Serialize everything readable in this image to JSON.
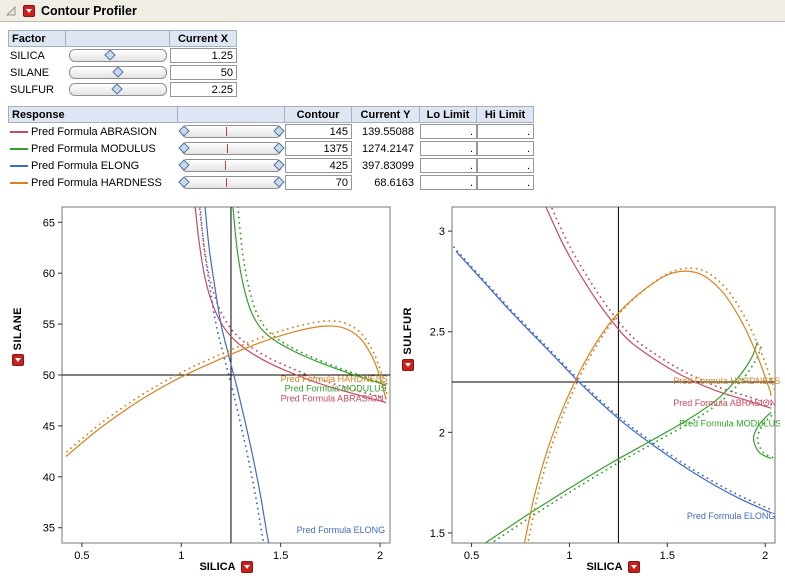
{
  "window": {
    "title": "Contour Profiler"
  },
  "colors": {
    "abrasion": "#c94a5e",
    "modulus": "#33a02c",
    "elong": "#4169c8",
    "hardness": "#d9821f",
    "menu_button": "#c8201c"
  },
  "factor_panel": {
    "headers": {
      "factor": "Factor",
      "current_x": "Current X"
    },
    "rows": [
      {
        "name": "SILICA",
        "value": "1.25",
        "slider_pos": 0.42
      },
      {
        "name": "SILANE",
        "value": "50",
        "slider_pos": 0.5
      },
      {
        "name": "SULFUR",
        "value": "2.25",
        "slider_pos": 0.49
      }
    ]
  },
  "response_panel": {
    "headers": {
      "response": "Response",
      "contour": "Contour",
      "current_y": "Current Y",
      "lo": "Lo Limit",
      "hi": "Hi Limit"
    },
    "rows": [
      {
        "name": "Pred Formula ABRASION",
        "color": "abrasion",
        "contour": "145",
        "current_y": "139.55088",
        "lo": ".",
        "hi": ".",
        "marker": 0.45,
        "lo_pos": 0.03,
        "hi_pos": 0.97
      },
      {
        "name": "Pred Formula MODULUS",
        "color": "modulus",
        "contour": "1375",
        "current_y": "1274.2147",
        "lo": ".",
        "hi": ".",
        "marker": 0.46,
        "lo_pos": 0.03,
        "hi_pos": 0.97
      },
      {
        "name": "Pred Formula ELONG",
        "color": "elong",
        "contour": "425",
        "current_y": "397.83099",
        "lo": ".",
        "hi": ".",
        "marker": 0.44,
        "lo_pos": 0.03,
        "hi_pos": 0.97
      },
      {
        "name": "Pred Formula HARDNESS",
        "color": "hardness",
        "contour": "70",
        "current_y": "68.6163",
        "lo": ".",
        "hi": ".",
        "marker": 0.45,
        "lo_pos": 0.03,
        "hi_pos": 0.97
      }
    ]
  },
  "chart_data": [
    {
      "type": "contour",
      "xlabel": "SILICA",
      "ylabel": "SILANE",
      "xlim": [
        0.4,
        2.05
      ],
      "ylim": [
        33.5,
        66.5
      ],
      "xticks": [
        0.5,
        1,
        1.5,
        2
      ],
      "yticks": [
        35,
        40,
        45,
        50,
        55,
        60,
        65
      ],
      "crosshair": {
        "x": 1.25,
        "y": 50
      },
      "curves": [
        {
          "name": "Pred Formula ABRASION",
          "color": "abrasion",
          "dot_offset": [
            4,
            -3
          ],
          "points": [
            [
              1.07,
              66.5
            ],
            [
              1.09,
              63
            ],
            [
              1.12,
              59.5
            ],
            [
              1.16,
              56.8
            ],
            [
              1.21,
              54.8
            ],
            [
              1.27,
              53.4
            ],
            [
              1.35,
              52.2
            ],
            [
              1.45,
              51.1
            ],
            [
              1.58,
              50.0
            ],
            [
              1.72,
              49.0
            ],
            [
              1.86,
              48.2
            ],
            [
              2.03,
              47.3
            ]
          ]
        },
        {
          "name": "Pred Formula MODULUS",
          "color": "modulus",
          "dot_offset": [
            5,
            0
          ],
          "points": [
            [
              1.26,
              66.5
            ],
            [
              1.28,
              62.5
            ],
            [
              1.31,
              59
            ],
            [
              1.35,
              56.3
            ],
            [
              1.4,
              54.6
            ],
            [
              1.47,
              53.4
            ],
            [
              1.57,
              52.3
            ],
            [
              1.7,
              51.2
            ],
            [
              1.84,
              50.2
            ],
            [
              2.03,
              49.0
            ]
          ]
        },
        {
          "name": "Pred Formula ELONG",
          "color": "elong",
          "dot_offset": [
            -5,
            0
          ],
          "points": [
            [
              1.12,
              66.5
            ],
            [
              1.14,
              62.5
            ],
            [
              1.17,
              58.5
            ],
            [
              1.2,
              55.0
            ],
            [
              1.24,
              51.8
            ],
            [
              1.28,
              48.8
            ],
            [
              1.32,
              45.5
            ],
            [
              1.36,
              42.0
            ],
            [
              1.4,
              38.0
            ],
            [
              1.43,
              34.5
            ],
            [
              1.44,
              33.5
            ]
          ]
        },
        {
          "name": "Pred Formula HARDNESS",
          "color": "hardness",
          "dot_offset": [
            1,
            -5
          ],
          "points": [
            [
              0.42,
              42.0
            ],
            [
              0.6,
              44.9
            ],
            [
              0.8,
              47.6
            ],
            [
              1.0,
              49.8
            ],
            [
              1.2,
              51.6
            ],
            [
              1.4,
              53.2
            ],
            [
              1.58,
              54.3
            ],
            [
              1.72,
              54.8
            ],
            [
              1.82,
              54.6
            ],
            [
              1.9,
              53.6
            ],
            [
              1.96,
              51.8
            ],
            [
              2.0,
              49.8
            ],
            [
              2.03,
              47.6
            ]
          ]
        }
      ],
      "labels": [
        {
          "text": "Pred Formula HARDNESS",
          "color": "hardness",
          "x": 1.5,
          "y": 49.3
        },
        {
          "text": "Pred Formula MODULUS",
          "color": "modulus",
          "x": 1.52,
          "y": 48.4
        },
        {
          "text": "Pred Formula ABRASION",
          "color": "abrasion",
          "x": 1.5,
          "y": 47.4
        },
        {
          "text": "Pred Formula ELONG",
          "color": "elong",
          "x": 1.58,
          "y": 34.5
        }
      ]
    },
    {
      "type": "contour",
      "xlabel": "SILICA",
      "ylabel": "SULFUR",
      "xlim": [
        0.4,
        2.05
      ],
      "ylim": [
        1.45,
        3.12
      ],
      "xticks": [
        0.5,
        1,
        1.5,
        2
      ],
      "yticks": [
        1.5,
        2,
        2.5,
        3
      ],
      "crosshair": {
        "x": 1.25,
        "y": 2.25
      },
      "curves": [
        {
          "name": "Pred Formula ABRASION",
          "color": "abrasion",
          "dot_offset": [
            4,
            -3
          ],
          "points": [
            [
              0.88,
              3.12
            ],
            [
              0.97,
              2.93
            ],
            [
              1.07,
              2.76
            ],
            [
              1.18,
              2.6
            ],
            [
              1.3,
              2.46
            ],
            [
              1.44,
              2.36
            ],
            [
              1.58,
              2.28
            ],
            [
              1.74,
              2.21
            ],
            [
              1.9,
              2.16
            ],
            [
              2.03,
              2.12
            ]
          ]
        },
        {
          "name": "Pred Formula ELONG",
          "color": "elong",
          "dot_offset": [
            -2,
            -4
          ],
          "points": [
            [
              0.42,
              2.9
            ],
            [
              0.56,
              2.75
            ],
            [
              0.72,
              2.58
            ],
            [
              0.9,
              2.4
            ],
            [
              1.08,
              2.22
            ],
            [
              1.26,
              2.06
            ],
            [
              1.45,
              1.92
            ],
            [
              1.65,
              1.79
            ],
            [
              1.85,
              1.68
            ],
            [
              2.03,
              1.6
            ]
          ]
        },
        {
          "name": "Pred Formula MODULUS",
          "color": "modulus",
          "dot_offset": [
            5,
            1
          ],
          "points": [
            [
              0.57,
              1.45
            ],
            [
              0.77,
              1.58
            ],
            [
              0.98,
              1.71
            ],
            [
              1.2,
              1.84
            ],
            [
              1.42,
              1.96
            ],
            [
              1.6,
              2.06
            ],
            [
              1.75,
              2.16
            ],
            [
              1.86,
              2.27
            ],
            [
              1.93,
              2.37
            ],
            [
              1.96,
              2.45
            ]
          ]
        },
        {
          "name": "Pred Formula MODULUS",
          "color": "modulus",
          "dot_offset": [
            4,
            0
          ],
          "points": [
            [
              2.03,
              2.1
            ],
            [
              1.97,
              2.04
            ],
            [
              1.94,
              1.97
            ],
            [
              1.97,
              1.9
            ],
            [
              2.03,
              1.87
            ]
          ]
        },
        {
          "name": "Pred Formula HARDNESS",
          "color": "hardness",
          "dot_offset": [
            4,
            -3
          ],
          "points": [
            [
              0.77,
              1.45
            ],
            [
              0.82,
              1.68
            ],
            [
              0.89,
              1.92
            ],
            [
              0.98,
              2.15
            ],
            [
              1.09,
              2.37
            ],
            [
              1.22,
              2.56
            ],
            [
              1.37,
              2.7
            ],
            [
              1.52,
              2.79
            ],
            [
              1.66,
              2.79
            ],
            [
              1.78,
              2.7
            ],
            [
              1.88,
              2.55
            ],
            [
              1.96,
              2.38
            ],
            [
              2.02,
              2.22
            ],
            [
              2.03,
              2.18
            ]
          ]
        }
      ],
      "labels": [
        {
          "text": "Pred Formula HARDNESS",
          "color": "hardness",
          "x": 1.53,
          "y": 2.24
        },
        {
          "text": "Pred Formula ABRASION",
          "color": "abrasion",
          "x": 1.53,
          "y": 2.13
        },
        {
          "text": "Pred Formula MODULUS",
          "color": "modulus",
          "x": 1.56,
          "y": 2.03
        },
        {
          "text": "Pred Formula ELONG",
          "color": "elong",
          "x": 1.6,
          "y": 1.57
        }
      ]
    }
  ]
}
